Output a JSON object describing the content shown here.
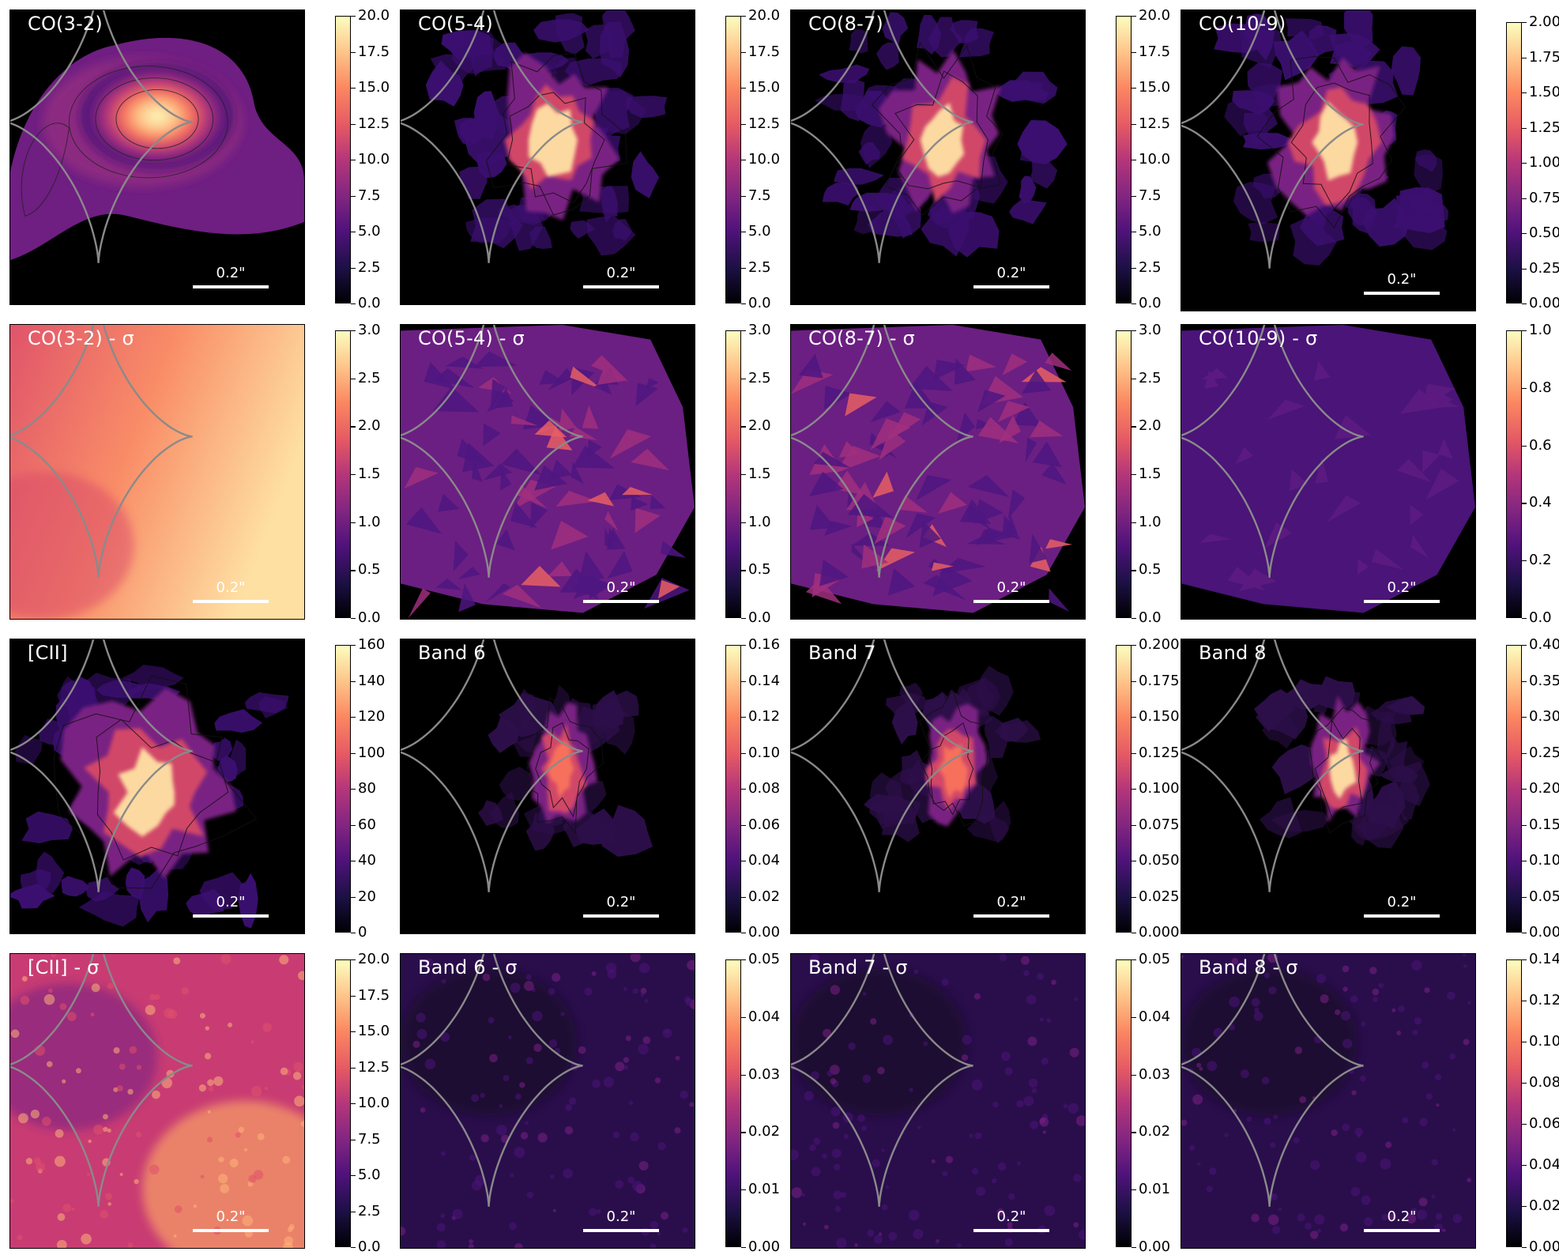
{
  "figure": {
    "scalebar_label": "0.2\"",
    "colormap": "magma",
    "caustic_color": "#8a8a8a",
    "panels": [
      {
        "title": "CO(3-2)",
        "kind": "co32",
        "cbar_ticks": [
          "0.0",
          "2.5",
          "5.0",
          "7.5",
          "10.0",
          "12.5",
          "15.0",
          "17.5",
          "20.0"
        ]
      },
      {
        "title": "CO(5-4)",
        "kind": "line",
        "cbar_ticks": [
          "0.0",
          "2.5",
          "5.0",
          "7.5",
          "10.0",
          "12.5",
          "15.0",
          "17.5",
          "20.0"
        ]
      },
      {
        "title": "CO(8-7)",
        "kind": "line",
        "cbar_ticks": [
          "0.0",
          "2.5",
          "5.0",
          "7.5",
          "10.0",
          "12.5",
          "15.0",
          "17.5",
          "20.0"
        ]
      },
      {
        "title": "CO(10-9)",
        "kind": "line",
        "cbar_ticks": [
          "0.00",
          "0.25",
          "0.50",
          "0.75",
          "1.00",
          "1.25",
          "1.50",
          "1.75",
          "2.00"
        ]
      },
      {
        "title": "CO(3-2) - σ",
        "kind": "sigma_smooth",
        "cbar_ticks": [
          "0.0",
          "0.5",
          "1.0",
          "1.5",
          "2.0",
          "2.5",
          "3.0"
        ]
      },
      {
        "title": "CO(5-4) - σ",
        "kind": "sigma_poly",
        "cbar_ticks": [
          "0.0",
          "0.5",
          "1.0",
          "1.5",
          "2.0",
          "2.5",
          "3.0"
        ]
      },
      {
        "title": "CO(8-7) - σ",
        "kind": "sigma_poly",
        "cbar_ticks": [
          "0.0",
          "0.5",
          "1.0",
          "1.5",
          "2.0",
          "2.5",
          "3.0"
        ]
      },
      {
        "title": "CO(10-9) - σ",
        "kind": "sigma_poly_dim",
        "cbar_ticks": [
          "0.0",
          "0.2",
          "0.4",
          "0.6",
          "0.8",
          "1.0"
        ]
      },
      {
        "title": "[CII]",
        "kind": "cii",
        "cbar_ticks": [
          "0",
          "20",
          "40",
          "60",
          "80",
          "100",
          "120",
          "140",
          "160"
        ]
      },
      {
        "title": "Band 6",
        "kind": "band",
        "cbar_ticks": [
          "0.00",
          "0.02",
          "0.04",
          "0.06",
          "0.08",
          "0.10",
          "0.12",
          "0.14",
          "0.16"
        ]
      },
      {
        "title": "Band 7",
        "kind": "band",
        "cbar_ticks": [
          "0.000",
          "0.025",
          "0.050",
          "0.075",
          "0.100",
          "0.125",
          "0.150",
          "0.175",
          "0.200"
        ]
      },
      {
        "title": "Band 8",
        "kind": "band_bright",
        "cbar_ticks": [
          "0.00",
          "0.05",
          "0.10",
          "0.15",
          "0.20",
          "0.25",
          "0.30",
          "0.35",
          "0.40"
        ]
      },
      {
        "title": "[CII] - σ",
        "kind": "noise_bright",
        "cbar_ticks": [
          "0.0",
          "2.5",
          "5.0",
          "7.5",
          "10.0",
          "12.5",
          "15.0",
          "17.5",
          "20.0"
        ]
      },
      {
        "title": "Band 6 - σ",
        "kind": "noise_dark",
        "cbar_ticks": [
          "0.00",
          "0.01",
          "0.02",
          "0.03",
          "0.04",
          "0.05"
        ]
      },
      {
        "title": "Band 7 - σ",
        "kind": "noise_dark",
        "cbar_ticks": [
          "0.00",
          "0.01",
          "0.02",
          "0.03",
          "0.04",
          "0.05"
        ]
      },
      {
        "title": "Band 8 - σ",
        "kind": "noise_dark",
        "cbar_ticks": [
          "0.00",
          "0.02",
          "0.04",
          "0.06",
          "0.08",
          "0.10",
          "0.12",
          "0.14"
        ]
      }
    ]
  }
}
